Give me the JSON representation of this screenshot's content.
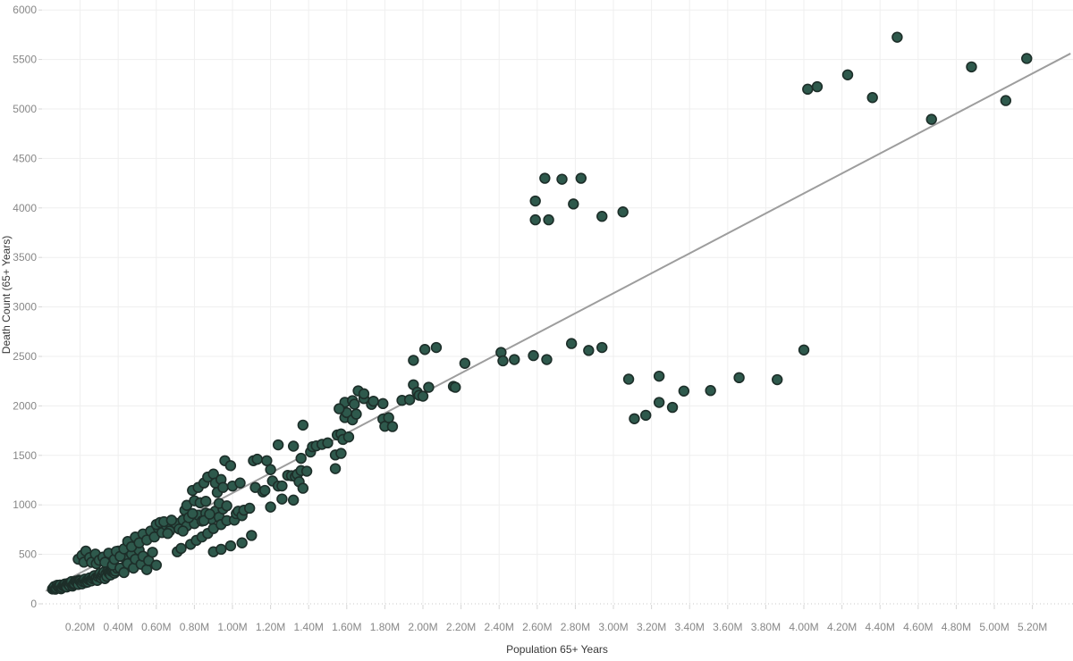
{
  "chart_data": {
    "type": "scatter",
    "title": "",
    "xlabel": "Population 65+ Years",
    "ylabel": "Death Count (65+ Years)",
    "xlim": [
      0,
      5.413
    ],
    "ylim": [
      0,
      6101
    ],
    "x_unit": "millions",
    "grid": true,
    "legend": "none",
    "x_ticks": [
      {
        "v": 0.2,
        "label": "0.20M"
      },
      {
        "v": 0.4,
        "label": "0.40M"
      },
      {
        "v": 0.6,
        "label": "0.60M"
      },
      {
        "v": 0.8,
        "label": "0.80M"
      },
      {
        "v": 1.0,
        "label": "1.00M"
      },
      {
        "v": 1.2,
        "label": "1.20M"
      },
      {
        "v": 1.4,
        "label": "1.40M"
      },
      {
        "v": 1.6,
        "label": "1.60M"
      },
      {
        "v": 1.8,
        "label": "1.80M"
      },
      {
        "v": 2.0,
        "label": "2.00M"
      },
      {
        "v": 2.2,
        "label": "2.20M"
      },
      {
        "v": 2.4,
        "label": "2.40M"
      },
      {
        "v": 2.6,
        "label": "2.60M"
      },
      {
        "v": 2.8,
        "label": "2.80M"
      },
      {
        "v": 3.0,
        "label": "3.00M"
      },
      {
        "v": 3.2,
        "label": "3.20M"
      },
      {
        "v": 3.4,
        "label": "3.40M"
      },
      {
        "v": 3.6,
        "label": "3.60M"
      },
      {
        "v": 3.8,
        "label": "3.80M"
      },
      {
        "v": 4.0,
        "label": "4.00M"
      },
      {
        "v": 4.2,
        "label": "4.20M"
      },
      {
        "v": 4.4,
        "label": "4.40M"
      },
      {
        "v": 4.6,
        "label": "4.60M"
      },
      {
        "v": 4.8,
        "label": "4.80M"
      },
      {
        "v": 5.0,
        "label": "5.00M"
      },
      {
        "v": 5.2,
        "label": "5.20M"
      }
    ],
    "y_ticks": [
      {
        "v": 0,
        "label": "0"
      },
      {
        "v": 500,
        "label": "500"
      },
      {
        "v": 1000,
        "label": "1000"
      },
      {
        "v": 1500,
        "label": "1500"
      },
      {
        "v": 2000,
        "label": "2000"
      },
      {
        "v": 2500,
        "label": "2500"
      },
      {
        "v": 3000,
        "label": "3000"
      },
      {
        "v": 3500,
        "label": "3500"
      },
      {
        "v": 4000,
        "label": "4000"
      },
      {
        "v": 4500,
        "label": "4500"
      },
      {
        "v": 5000,
        "label": "5000"
      },
      {
        "v": 5500,
        "label": "5500"
      },
      {
        "v": 6000,
        "label": "6000"
      }
    ],
    "trendline": {
      "x1": 0.02,
      "y1": 130,
      "x2": 5.4,
      "y2": 5560
    },
    "colors": {
      "point_fill": "#2e594c",
      "point_stroke": "#1d2e29",
      "trend_line": "#9d9d9d",
      "grid_line": "#efefef",
      "zero_line": "#c9c9c9",
      "tick_mark": "#d6d6d6",
      "tick_text": "#878787",
      "title_text": "#373737",
      "background": "#ffffff"
    },
    "points": [
      [
        0.055,
        150
      ],
      [
        0.06,
        162
      ],
      [
        0.065,
        175
      ],
      [
        0.07,
        148
      ],
      [
        0.075,
        160
      ],
      [
        0.08,
        188
      ],
      [
        0.085,
        172
      ],
      [
        0.09,
        170
      ],
      [
        0.095,
        190
      ],
      [
        0.1,
        152
      ],
      [
        0.105,
        165
      ],
      [
        0.11,
        183
      ],
      [
        0.115,
        192
      ],
      [
        0.12,
        200
      ],
      [
        0.125,
        178
      ],
      [
        0.13,
        170
      ],
      [
        0.135,
        205
      ],
      [
        0.14,
        195
      ],
      [
        0.145,
        182
      ],
      [
        0.15,
        212
      ],
      [
        0.155,
        225
      ],
      [
        0.16,
        180
      ],
      [
        0.165,
        195
      ],
      [
        0.17,
        205
      ],
      [
        0.175,
        230
      ],
      [
        0.18,
        222
      ],
      [
        0.185,
        210
      ],
      [
        0.19,
        196
      ],
      [
        0.195,
        240
      ],
      [
        0.2,
        232
      ],
      [
        0.205,
        215
      ],
      [
        0.21,
        202
      ],
      [
        0.215,
        225
      ],
      [
        0.22,
        242
      ],
      [
        0.225,
        250
      ],
      [
        0.23,
        215
      ],
      [
        0.235,
        235
      ],
      [
        0.24,
        220
      ],
      [
        0.245,
        245
      ],
      [
        0.25,
        262
      ],
      [
        0.255,
        240
      ],
      [
        0.26,
        232
      ],
      [
        0.265,
        255
      ],
      [
        0.27,
        272
      ],
      [
        0.275,
        285
      ],
      [
        0.28,
        250
      ],
      [
        0.285,
        265
      ],
      [
        0.29,
        237
      ],
      [
        0.295,
        275
      ],
      [
        0.3,
        292
      ],
      [
        0.305,
        310
      ],
      [
        0.31,
        262
      ],
      [
        0.315,
        285
      ],
      [
        0.32,
        302
      ],
      [
        0.325,
        320
      ],
      [
        0.33,
        255
      ],
      [
        0.335,
        300
      ],
      [
        0.34,
        277
      ],
      [
        0.345,
        330
      ],
      [
        0.35,
        316
      ],
      [
        0.355,
        305
      ],
      [
        0.36,
        292
      ],
      [
        0.365,
        330
      ],
      [
        0.37,
        340
      ],
      [
        0.375,
        355
      ],
      [
        0.38,
        310
      ],
      [
        0.385,
        330
      ],
      [
        0.395,
        360
      ],
      [
        0.19,
        451
      ],
      [
        0.21,
        490
      ],
      [
        0.22,
        421
      ],
      [
        0.23,
        533
      ],
      [
        0.25,
        467
      ],
      [
        0.26,
        420
      ],
      [
        0.28,
        503
      ],
      [
        0.285,
        406
      ],
      [
        0.3,
        440
      ],
      [
        0.32,
        472
      ],
      [
        0.33,
        420
      ],
      [
        0.35,
        512
      ],
      [
        0.37,
        391
      ],
      [
        0.38,
        450
      ],
      [
        0.4,
        533
      ],
      [
        0.41,
        361
      ],
      [
        0.42,
        481
      ],
      [
        0.43,
        316
      ],
      [
        0.44,
        450
      ],
      [
        0.45,
        406
      ],
      [
        0.47,
        503
      ],
      [
        0.48,
        361
      ],
      [
        0.49,
        451
      ],
      [
        0.51,
        542
      ],
      [
        0.52,
        400
      ],
      [
        0.53,
        481
      ],
      [
        0.55,
        346
      ],
      [
        0.56,
        436
      ],
      [
        0.58,
        521
      ],
      [
        0.6,
        391
      ],
      [
        0.39,
        530
      ],
      [
        0.41,
        480
      ],
      [
        0.43,
        555
      ],
      [
        0.45,
        630
      ],
      [
        0.47,
        577
      ],
      [
        0.49,
        675
      ],
      [
        0.51,
        616
      ],
      [
        0.53,
        706
      ],
      [
        0.55,
        645
      ],
      [
        0.57,
        735
      ],
      [
        0.59,
        676
      ],
      [
        0.61,
        766
      ],
      [
        0.63,
        720
      ],
      [
        0.65,
        796
      ],
      [
        0.67,
        736
      ],
      [
        0.7,
        816
      ],
      [
        0.72,
        756
      ],
      [
        0.74,
        846
      ],
      [
        0.76,
        786
      ],
      [
        0.78,
        871
      ],
      [
        0.8,
        811
      ],
      [
        0.82,
        896
      ],
      [
        0.84,
        836
      ],
      [
        0.86,
        916
      ],
      [
        0.89,
        856
      ],
      [
        0.91,
        937
      ],
      [
        0.93,
        876
      ],
      [
        0.95,
        958
      ],
      [
        0.6,
        801
      ],
      [
        0.62,
        822
      ],
      [
        0.64,
        830
      ],
      [
        0.66,
        711
      ],
      [
        0.68,
        845
      ],
      [
        0.71,
        526
      ],
      [
        0.73,
        560
      ],
      [
        0.74,
        736
      ],
      [
        0.75,
        946
      ],
      [
        0.76,
        995
      ],
      [
        0.77,
        871
      ],
      [
        0.78,
        601
      ],
      [
        0.79,
        912
      ],
      [
        0.79,
        1146
      ],
      [
        0.8,
        1041
      ],
      [
        0.81,
        641
      ],
      [
        0.82,
        1176
      ],
      [
        0.83,
        1021
      ],
      [
        0.84,
        676
      ],
      [
        0.85,
        841
      ],
      [
        0.85,
        1221
      ],
      [
        0.86,
        1036
      ],
      [
        0.87,
        711
      ],
      [
        0.87,
        1281
      ],
      [
        0.88,
        906
      ],
      [
        0.9,
        526
      ],
      [
        0.9,
        761
      ],
      [
        0.9,
        1311
      ],
      [
        0.91,
        1221
      ],
      [
        0.92,
        1126
      ],
      [
        0.93,
        1015
      ],
      [
        0.94,
        551
      ],
      [
        0.94,
        801
      ],
      [
        0.94,
        1256
      ],
      [
        0.95,
        1176
      ],
      [
        0.96,
        1446
      ],
      [
        0.97,
        841
      ],
      [
        0.97,
        990
      ],
      [
        0.99,
        586
      ],
      [
        0.99,
        1396
      ],
      [
        1.0,
        1190
      ],
      [
        1.01,
        846
      ],
      [
        1.02,
        911
      ],
      [
        1.03,
        936
      ],
      [
        1.04,
        1221
      ],
      [
        1.05,
        616
      ],
      [
        1.05,
        891
      ],
      [
        1.06,
        946
      ],
      [
        1.09,
        966
      ],
      [
        1.1,
        691
      ],
      [
        1.11,
        1446
      ],
      [
        1.12,
        1176
      ],
      [
        1.13,
        1461
      ],
      [
        1.16,
        1131
      ],
      [
        1.17,
        1146
      ],
      [
        1.18,
        1446
      ],
      [
        1.2,
        978
      ],
      [
        1.2,
        1356
      ],
      [
        1.21,
        1241
      ],
      [
        1.26,
        1059
      ],
      [
        1.32,
        1048
      ],
      [
        1.24,
        1190
      ],
      [
        1.24,
        1606
      ],
      [
        1.26,
        1191
      ],
      [
        1.29,
        1298
      ],
      [
        1.31,
        1294
      ],
      [
        1.32,
        1593
      ],
      [
        1.33,
        1286
      ],
      [
        1.34,
        1309
      ],
      [
        1.35,
        1233
      ],
      [
        1.36,
        1346
      ],
      [
        1.36,
        1470
      ],
      [
        1.37,
        1168
      ],
      [
        1.37,
        1806
      ],
      [
        1.39,
        1340
      ],
      [
        1.41,
        1534
      ],
      [
        1.42,
        1587
      ],
      [
        1.44,
        1596
      ],
      [
        1.47,
        1611
      ],
      [
        1.5,
        1626
      ],
      [
        1.54,
        1366
      ],
      [
        1.54,
        1504
      ],
      [
        1.55,
        1706
      ],
      [
        1.57,
        1520
      ],
      [
        1.57,
        1716
      ],
      [
        1.58,
        1661
      ],
      [
        1.59,
        1882
      ],
      [
        1.59,
        2036
      ],
      [
        1.6,
        1932
      ],
      [
        1.61,
        1686
      ],
      [
        1.56,
        1971
      ],
      [
        1.63,
        1859
      ],
      [
        1.63,
        2053
      ],
      [
        1.64,
        2017
      ],
      [
        1.65,
        1917
      ],
      [
        1.66,
        2152
      ],
      [
        1.69,
        2074
      ],
      [
        1.69,
        2122
      ],
      [
        1.73,
        2015
      ],
      [
        1.74,
        2047
      ],
      [
        1.79,
        1867
      ],
      [
        1.79,
        2023
      ],
      [
        1.8,
        1794
      ],
      [
        1.82,
        1881
      ],
      [
        1.84,
        1791
      ],
      [
        1.89,
        2056
      ],
      [
        1.93,
        2062
      ],
      [
        1.95,
        2213
      ],
      [
        1.95,
        2460
      ],
      [
        1.97,
        2138
      ],
      [
        1.98,
        2107
      ],
      [
        2.0,
        2098
      ],
      [
        2.01,
        2570
      ],
      [
        2.03,
        2188
      ],
      [
        2.07,
        2590
      ],
      [
        2.16,
        2197
      ],
      [
        2.17,
        2188
      ],
      [
        2.22,
        2430
      ],
      [
        2.41,
        2540
      ],
      [
        2.42,
        2455
      ],
      [
        2.48,
        2468
      ],
      [
        2.58,
        2508
      ],
      [
        2.65,
        2468
      ],
      [
        2.78,
        2630
      ],
      [
        2.87,
        2560
      ],
      [
        2.94,
        2590
      ],
      [
        3.08,
        2270
      ],
      [
        3.11,
        1870
      ],
      [
        3.17,
        1905
      ],
      [
        3.24,
        2035
      ],
      [
        3.24,
        2300
      ],
      [
        3.31,
        1985
      ],
      [
        3.37,
        2150
      ],
      [
        3.51,
        2155
      ],
      [
        3.66,
        2285
      ],
      [
        3.86,
        2265
      ],
      [
        4.0,
        2565
      ],
      [
        2.59,
        3880
      ],
      [
        2.59,
        4070
      ],
      [
        2.64,
        4300
      ],
      [
        2.66,
        3880
      ],
      [
        2.73,
        4290
      ],
      [
        2.79,
        4040
      ],
      [
        2.83,
        4300
      ],
      [
        2.94,
        3915
      ],
      [
        3.05,
        3960
      ],
      [
        4.02,
        5200
      ],
      [
        4.07,
        5225
      ],
      [
        4.23,
        5345
      ],
      [
        4.36,
        5115
      ],
      [
        4.49,
        5725
      ],
      [
        4.67,
        4895
      ],
      [
        4.88,
        5425
      ],
      [
        5.06,
        5085
      ],
      [
        5.17,
        5510
      ]
    ]
  }
}
